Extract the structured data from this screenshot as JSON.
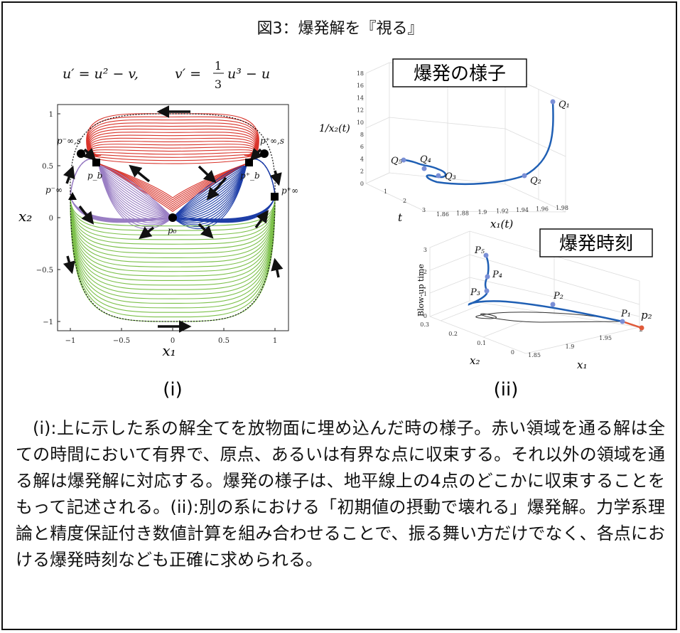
{
  "figure": {
    "title": "図3：爆発解を『視る』",
    "equation_left": "u′ = u² − v,",
    "equation_right_lhs": "v′ =",
    "equation_frac_num": "1",
    "equation_frac_den": "3",
    "equation_right_rhs": "u³ − u"
  },
  "panel_i": {
    "label": "(i)",
    "x_label": "x₁",
    "y_label": "x₂",
    "x_ticks": [
      "−1",
      "−0.5",
      "0",
      "0.5",
      "1"
    ],
    "y_ticks": [
      "1",
      "0.5",
      "0",
      "−0.5",
      "−1"
    ],
    "points": {
      "p_inf_s_minus": "p⁻∞,s",
      "p_inf_s_plus": "p⁺∞,s",
      "p_b": "p_b",
      "p_b_plus": "p⁺_b",
      "p_inf_minus": "p⁻∞",
      "p_inf_plus": "p⁺∞",
      "p_0": "p₀"
    },
    "region_colors": {
      "red": "#d9342b",
      "purple": "#9a7fc4",
      "blue": "#1f3fa8",
      "green": "#7cc04a"
    }
  },
  "panel_q": {
    "title": "爆発の様子",
    "z_label": "1/x₂(t)",
    "x_label": "x₁(t)",
    "t_label": "t",
    "z_ticks": [
      "18",
      "16",
      "14",
      "12",
      "10",
      "8",
      "6",
      "4",
      "2",
      "0"
    ],
    "x_ticks": [
      "1.86",
      "1.88",
      "1.9",
      "1.92",
      "1.94",
      "1.96",
      "1.98"
    ],
    "t_ticks": [
      "1",
      "2",
      "3"
    ],
    "points": [
      "Q₁",
      "Q₂",
      "Q₃",
      "Q₄",
      "Q₅"
    ]
  },
  "panel_ii": {
    "title": "爆発時刻",
    "label": "(ii)",
    "z_label": "Blow-up time",
    "x_label": "x₁",
    "y_label": "x₂",
    "z_ticks": [
      "3",
      "2",
      "1",
      "0"
    ],
    "y_ticks": [
      "0.3",
      "0.2",
      "0.1",
      "0"
    ],
    "x_ticks": [
      "1.85",
      "1.9",
      "1.95",
      "2"
    ],
    "points": [
      "P₁",
      "P₂",
      "P₃",
      "P₄",
      "P₅",
      "p₂"
    ]
  },
  "caption": {
    "text": "(i):上に示した系の解全てを放物面に埋め込んだ時の様子。赤い領域を通る解は全ての時間において有界で、原点、あるいは有界な点に収束する。それ以外の領域を通る解は爆発解に対応する。爆発の様子は、地平線上の4点のどこかに収束することをもって記述される。(ii):別の系における「初期値の摂動で壊れる」爆発解。力学系理論と精度保証付き数値計算を組み合わせることで、振る舞い方だけでなく、各点における爆発時刻なども正確に求められる。"
  }
}
